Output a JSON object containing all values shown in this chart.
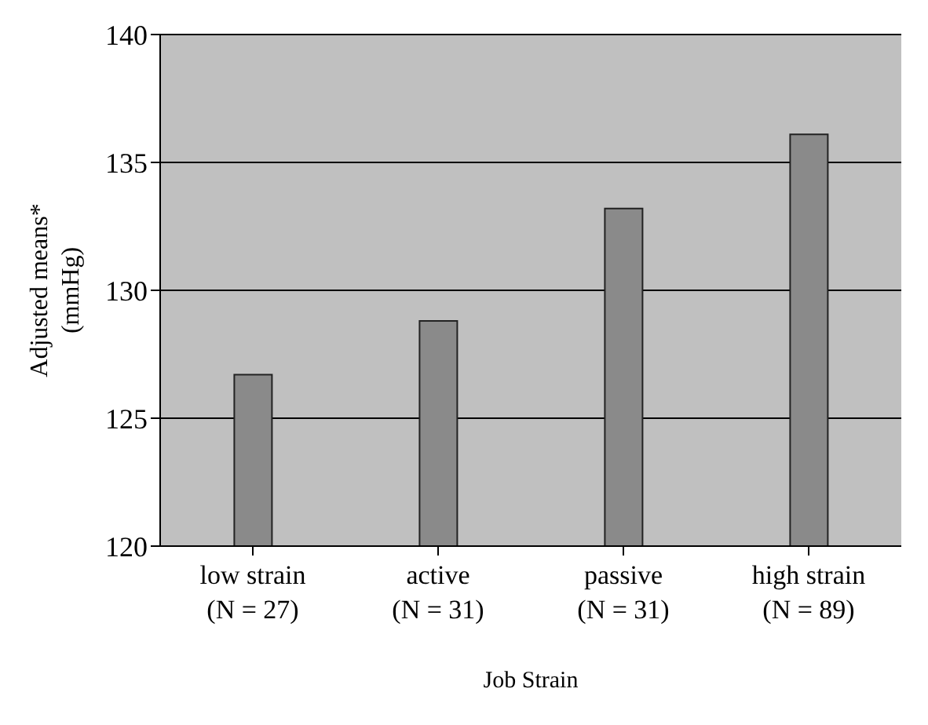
{
  "chart_data": {
    "type": "bar",
    "xlabel": "Job Strain",
    "ylabel": "Adjusted means*\n(mmHg)",
    "categories": [
      "low strain\n(N = 27)",
      "active\n(N = 31)",
      "passive\n(N = 31)",
      "high strain\n(N = 89)"
    ],
    "values": [
      126.7,
      128.8,
      133.2,
      136.1
    ],
    "color": "#8a8a8a",
    "ylim": [
      120,
      140
    ],
    "yticks": [
      120,
      125,
      130,
      135,
      140
    ],
    "grid": "y"
  }
}
